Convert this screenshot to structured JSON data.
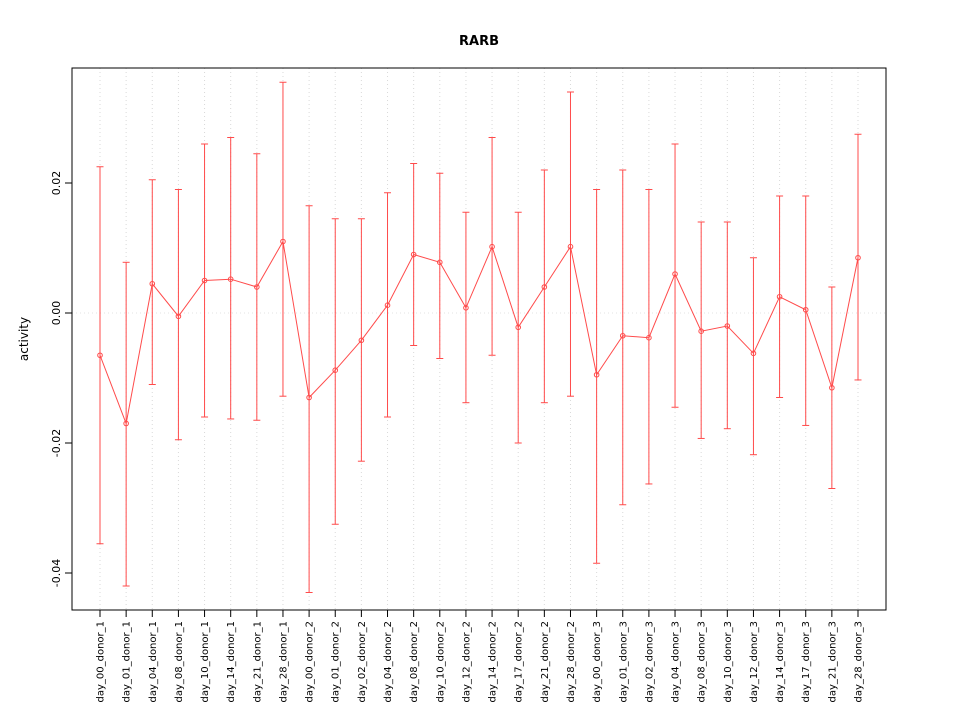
{
  "chart_data": {
    "type": "line",
    "title": "RARB",
    "xlabel": "",
    "ylabel": "activity",
    "ylim": [
      -0.046,
      0.038
    ],
    "yticks": [
      -0.04,
      -0.02,
      0.0,
      0.02
    ],
    "legend": "none",
    "grid": "dotted vertical line at each category; dotted horizontal line at y=0",
    "marker": "open-circle",
    "error_bars": true,
    "series_color": "#ff4b4b",
    "grid_color": "#d9d9d9",
    "axis_color": "#000000",
    "categories": [
      "day_00_donor_1",
      "day_01_donor_1",
      "day_04_donor_1",
      "day_08_donor_1",
      "day_10_donor_1",
      "day_14_donor_1",
      "day_21_donor_1",
      "day_28_donor_1",
      "day_00_donor_2",
      "day_01_donor_2",
      "day_02_donor_2",
      "day_04_donor_2",
      "day_08_donor_2",
      "day_10_donor_2",
      "day_12_donor_2",
      "day_14_donor_2",
      "day_17_donor_2",
      "day_21_donor_2",
      "day_28_donor_2",
      "day_00_donor_3",
      "day_01_donor_3",
      "day_02_donor_3",
      "day_04_donor_3",
      "day_08_donor_3",
      "day_10_donor_3",
      "day_12_donor_3",
      "day_14_donor_3",
      "day_17_donor_3",
      "day_21_donor_3",
      "day_28_donor_3"
    ],
    "means": [
      -0.0065,
      -0.017,
      0.0045,
      -0.0005,
      0.005,
      0.0052,
      0.004,
      0.011,
      -0.013,
      -0.0088,
      -0.0042,
      0.0012,
      0.009,
      0.0078,
      0.0008,
      0.0102,
      -0.0022,
      0.004,
      0.0102,
      -0.0095,
      -0.0035,
      -0.0038,
      0.006,
      -0.0028,
      -0.002,
      -0.0062,
      0.0025,
      0.0005,
      -0.0115,
      0.0085
    ],
    "upper": [
      0.0225,
      0.0078,
      0.0205,
      0.019,
      0.026,
      0.027,
      0.0245,
      0.0355,
      0.0165,
      0.0145,
      0.0145,
      0.0185,
      0.023,
      0.0215,
      0.0155,
      0.027,
      0.0155,
      0.022,
      0.034,
      0.019,
      0.022,
      0.019,
      0.026,
      0.014,
      0.014,
      0.0085,
      0.018,
      0.018,
      0.004,
      0.0275
    ],
    "lower": [
      -0.0355,
      -0.042,
      -0.011,
      -0.0195,
      -0.016,
      -0.0163,
      -0.0165,
      -0.0128,
      -0.043,
      -0.0325,
      -0.0228,
      -0.016,
      -0.005,
      -0.007,
      -0.0138,
      -0.0065,
      -0.02,
      -0.0138,
      -0.0128,
      -0.0385,
      -0.0295,
      -0.0263,
      -0.0145,
      -0.0193,
      -0.0178,
      -0.0218,
      -0.013,
      -0.0173,
      -0.027,
      -0.0103
    ]
  }
}
